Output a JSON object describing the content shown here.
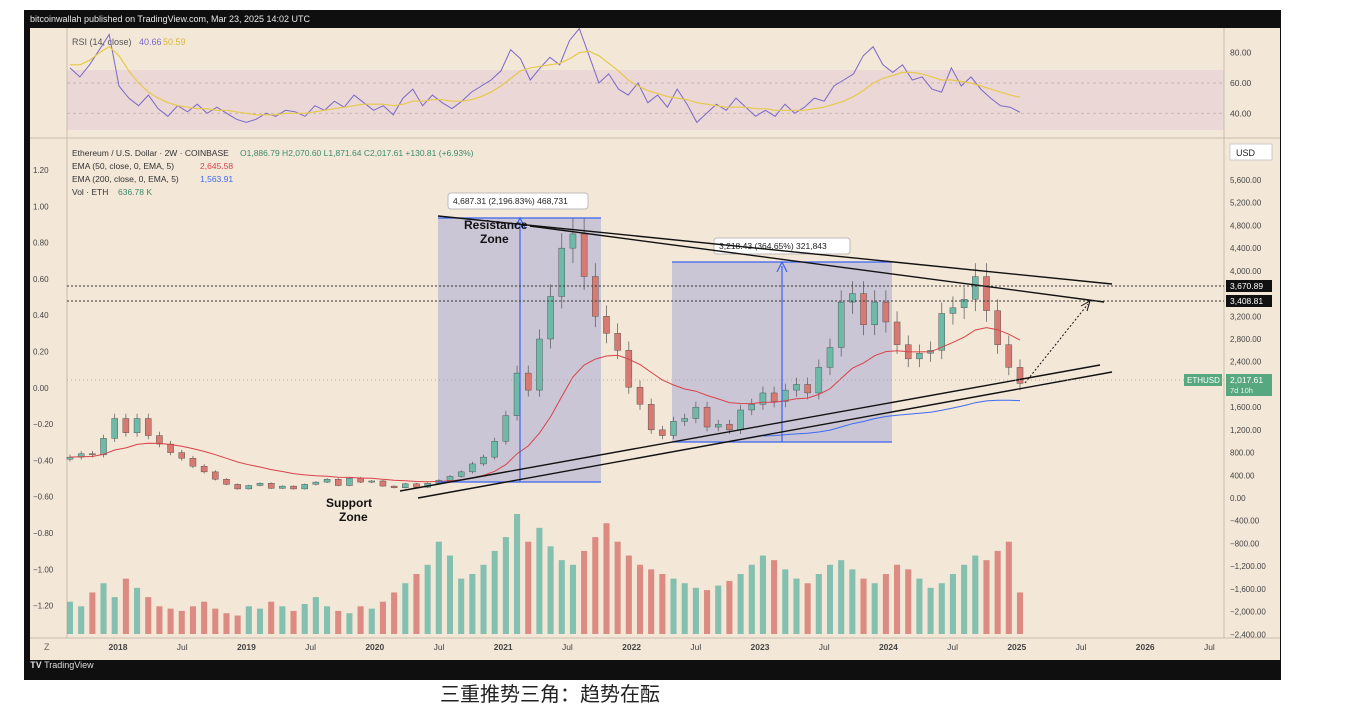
{
  "header": {
    "publisher": "bitcoinwallah published on TradingView.com, Mar 23, 2025 14:02 UTC"
  },
  "footer": {
    "logo_text": "TradingView",
    "bottom_text": "三重推势三角：趋势在酝"
  },
  "colors": {
    "background": "#f3e7d8",
    "candle_up": "#6fb9a8",
    "candle_down": "#d67a72",
    "ema50": "#d8424a",
    "ema200": "#3f6cf0",
    "rsi_line": "#7b68c8",
    "rsi_ma": "#e6c94a",
    "rsi_band": "#e9d5d6",
    "range_box": "#b6b3d6",
    "arrow": "#3a63f0",
    "trendline": "#111111",
    "price_label": "#57a77f"
  },
  "chart_data": [
    {
      "type": "line",
      "panel": "rsi",
      "legend": {
        "label": "RSI (14, close)",
        "value": "40.66",
        "ma_value": "50.59"
      },
      "y_ticks": [
        "80.00",
        "60.00",
        "40.00"
      ],
      "ylim": [
        25,
        95
      ],
      "series": [
        {
          "kind": "rsi",
          "values": [
            70,
            64,
            72,
            82,
            92,
            58,
            50,
            45,
            52,
            43,
            38,
            45,
            41,
            46,
            40,
            44,
            40,
            36,
            34,
            36,
            40,
            38,
            42,
            41,
            38,
            45,
            42,
            48,
            44,
            52,
            47,
            42,
            45,
            39,
            50,
            56,
            45,
            52,
            47,
            43,
            48,
            54,
            58,
            62,
            68,
            82,
            76,
            62,
            70,
            77,
            72,
            88,
            96,
            78,
            60,
            66,
            56,
            52,
            60,
            47,
            52,
            44,
            56,
            46,
            34,
            40,
            46,
            42,
            50,
            44,
            38,
            42,
            38,
            46,
            40,
            44,
            50,
            48,
            58,
            62,
            66,
            78,
            84,
            72,
            67,
            72,
            62,
            64,
            56,
            54,
            70,
            58,
            64,
            56,
            50,
            45,
            44,
            40.66
          ]
        },
        {
          "kind": "rsi_ma",
          "values": [
            72,
            72,
            75,
            80,
            84,
            78,
            68,
            60,
            54,
            50,
            47,
            45,
            44,
            43,
            43,
            42,
            42,
            41,
            40,
            39,
            39,
            39,
            40,
            40,
            40,
            41,
            42,
            43,
            44,
            45,
            46,
            46,
            46,
            45,
            46,
            48,
            48,
            49,
            49,
            48,
            48,
            49,
            51,
            54,
            58,
            63,
            68,
            70,
            71,
            72,
            73,
            76,
            80,
            81,
            78,
            73,
            68,
            62,
            58,
            55,
            53,
            51,
            50,
            49,
            47,
            46,
            45,
            44,
            44,
            44,
            43,
            43,
            42,
            42,
            42,
            42,
            43,
            44,
            46,
            48,
            51,
            55,
            60,
            63,
            65,
            67,
            67,
            66,
            64,
            62,
            62,
            61,
            60,
            58,
            56,
            54,
            52,
            50.59
          ]
        }
      ]
    },
    {
      "type": "candlestick",
      "panel": "price",
      "legend": {
        "symbol": "Ethereum / U.S. Dollar · 2W · COINBASE",
        "ohlc": "O1,886.79 H2,070.60 L1,871.64 C2,017.61 +130.81 (+6.93%)",
        "ema50_label": "EMA (50, close, 0, EMA, 5)",
        "ema50_value": "2,645.58",
        "ema200_label": "EMA (200, close, 0, EMA, 5)",
        "ema200_value": "1,563.91",
        "vol_label": "Vol · ETH",
        "vol_value": "636.78 K"
      },
      "currency": "USD",
      "ylim": [
        -2500,
        6200
      ],
      "right_ticks": [
        "5,600.00",
        "5,200.00",
        "4,800.00",
        "4,400.00",
        "4,000.00",
        "3,200.00",
        "2,800.00",
        "2,400.00",
        "1,600.00",
        "1,200.00",
        "800.00",
        "400.00",
        "0.00",
        "−400.00",
        "−800.00",
        "−1,200.00",
        "−1,600.00",
        "−2,000.00",
        "−2,400.00"
      ],
      "left_ticks": [
        "1.20",
        "1.00",
        "0.80",
        "0.60",
        "0.40",
        "0.20",
        "0.00",
        "−0.20",
        "−0.40",
        "−0.60",
        "−0.80",
        "−1.00",
        "−1.20"
      ],
      "x_ticks": [
        "2018",
        "Jul",
        "2019",
        "Jul",
        "2020",
        "Jul",
        "2021",
        "Jul",
        "2022",
        "Jul",
        "2023",
        "Jul",
        "2024",
        "Jul",
        "2025",
        "Jul",
        "2026",
        "Jul"
      ],
      "x_axis_marker": "Z",
      "price_labels": [
        {
          "value": "3,670.89",
          "price": 3670.89
        },
        {
          "value": "3,408.81",
          "price": 3408.81
        },
        {
          "value": "ETHUSD",
          "sub": "7d 10h",
          "price_text": "2,017.61",
          "price": 2017.61
        }
      ],
      "measurements": [
        {
          "text": "4,687.31 (2,196.83%) 468,731"
        },
        {
          "text": "3,218.43 (364.65%) 321,843"
        }
      ],
      "annotations": [
        {
          "text": "Resistance",
          "text2": "Zone"
        },
        {
          "text": "Support",
          "text2": "Zone"
        }
      ],
      "closes": [
        720,
        780,
        760,
        1050,
        1400,
        1150,
        1400,
        1100,
        950,
        800,
        700,
        560,
        460,
        330,
        240,
        160,
        220,
        260,
        170,
        210,
        160,
        240,
        280,
        330,
        220,
        350,
        280,
        300,
        210,
        180,
        250,
        190,
        260,
        310,
        380,
        460,
        600,
        720,
        1000,
        1450,
        2200,
        1900,
        2800,
        3550,
        4400,
        4650,
        3900,
        3200,
        2900,
        2600,
        1950,
        1650,
        1200,
        1100,
        1350,
        1400,
        1600,
        1250,
        1300,
        1200,
        1550,
        1650,
        1850,
        1700,
        1900,
        2000,
        1850,
        2300,
        2650,
        3450,
        3600,
        3050,
        3450,
        3100,
        2700,
        2450,
        2550,
        2600,
        3250,
        3350,
        3500,
        3900,
        3300,
        2700,
        2300,
        2017.61
      ],
      "volumes": [
        70,
        60,
        90,
        110,
        80,
        120,
        100,
        80,
        60,
        55,
        50,
        60,
        70,
        55,
        45,
        40,
        60,
        55,
        70,
        60,
        50,
        65,
        80,
        60,
        50,
        45,
        60,
        55,
        70,
        90,
        110,
        130,
        150,
        200,
        170,
        120,
        130,
        150,
        180,
        210,
        260,
        200,
        230,
        190,
        160,
        150,
        180,
        210,
        240,
        200,
        170,
        150,
        140,
        130,
        120,
        110,
        100,
        95,
        105,
        115,
        130,
        150,
        170,
        160,
        140,
        120,
        110,
        130,
        150,
        160,
        140,
        120,
        110,
        130,
        150,
        140,
        120,
        100,
        110,
        130,
        150,
        170,
        160,
        180,
        200,
        90
      ]
    }
  ]
}
